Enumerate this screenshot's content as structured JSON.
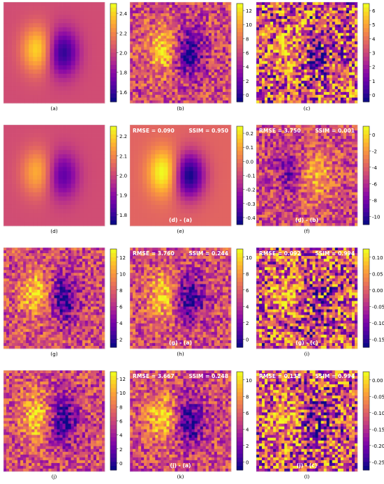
{
  "panels": [
    {
      "id": "a",
      "caption": "(a)",
      "pattern": "smooth",
      "scheme": "dipole",
      "overlay": null,
      "colorbar": {
        "ticks": [
          "2.4",
          "2.2",
          "2.0",
          "1.8",
          "1.6"
        ]
      }
    },
    {
      "id": "b",
      "caption": "(b)",
      "pattern": "noisy_soft",
      "scheme": "dipole",
      "overlay": null,
      "colorbar": {
        "ticks": [
          "12",
          "10",
          "8",
          "6",
          "4",
          "2",
          "0"
        ]
      }
    },
    {
      "id": "c",
      "caption": "(c)",
      "pattern": "noisy_heavy",
      "scheme": "dipole",
      "overlay": null,
      "colorbar": {
        "ticks": [
          "6",
          "5",
          "4",
          "3",
          "2",
          "1",
          "0"
        ]
      }
    },
    {
      "id": "d",
      "caption": "(d)",
      "pattern": "smooth_weak",
      "scheme": "dipole",
      "overlay": null,
      "colorbar": {
        "ticks": [
          "2.2",
          "2.1",
          "2.0",
          "1.9",
          "1.8"
        ]
      }
    },
    {
      "id": "e",
      "caption": "(e)",
      "pattern": "smooth",
      "scheme": "diff_e",
      "overlay": {
        "rmse": "RMSE = 0.090",
        "ssim": "SSIM = 0.950",
        "label": "(d) - (a)"
      },
      "colorbar": {
        "ticks": [
          "0.2",
          "0.1",
          "0.0",
          "-0.1",
          "-0.2",
          "-0.3",
          "-0.4"
        ]
      }
    },
    {
      "id": "f",
      "caption": "(f)",
      "pattern": "noisy_soft",
      "scheme": "reverse",
      "overlay": {
        "rmse": "RMSE = 3.750",
        "ssim": "SSIM = 0.001",
        "label": "(d) - (b)"
      },
      "colorbar": {
        "ticks": [
          "0",
          "-2",
          "-4",
          "-6",
          "-8",
          "-10"
        ]
      }
    },
    {
      "id": "g",
      "caption": "(g)",
      "pattern": "noisy_soft",
      "scheme": "dipole",
      "overlay": null,
      "colorbar": {
        "ticks": [
          "12",
          "10",
          "8",
          "6",
          "4",
          "2"
        ]
      }
    },
    {
      "id": "h",
      "caption": "(h)",
      "pattern": "noisy_soft",
      "scheme": "dipole",
      "overlay": {
        "rmse": "RMSE = 3.760",
        "ssim": "SSIM = 0.244",
        "label": "(g) - (a)"
      },
      "colorbar": {
        "ticks": [
          "10",
          "8",
          "6",
          "4",
          "2",
          "0"
        ]
      }
    },
    {
      "id": "i",
      "caption": "(i)",
      "pattern": "noisy_heavy",
      "scheme": "dipole",
      "overlay": {
        "rmse": "RMSE = 0.092",
        "ssim": "SSIM = 0.994",
        "label": "(g) - (c)"
      },
      "colorbar": {
        "ticks": [
          "0.10",
          "0.05",
          "0.00",
          "-0.05",
          "-0.10",
          "-0.15"
        ]
      }
    },
    {
      "id": "j",
      "caption": "(j)",
      "pattern": "noisy_soft",
      "scheme": "dipole",
      "overlay": null,
      "colorbar": {
        "ticks": [
          "12",
          "10",
          "8",
          "6",
          "4",
          "2",
          "0"
        ]
      }
    },
    {
      "id": "k",
      "caption": "(k)",
      "pattern": "noisy_soft",
      "scheme": "dipole",
      "overlay": {
        "rmse": "RMSE = 3.667",
        "ssim": "SSIM = 0.248",
        "label": "(j) - (a)"
      },
      "colorbar": {
        "ticks": [
          "10",
          "8",
          "6",
          "4",
          "2",
          "0"
        ]
      }
    },
    {
      "id": "l",
      "caption": "(l)",
      "pattern": "noisy_heavy",
      "scheme": "dipole",
      "overlay": {
        "rmse": "RMSE = 0.138",
        "ssim": "SSIM = 0.994",
        "label": "(j) - (c)"
      },
      "colorbar": {
        "ticks": [
          "0.00",
          "-0.05",
          "-0.10",
          "-0.15",
          "-0.20",
          "-0.25"
        ]
      }
    }
  ],
  "colors": {
    "background": "#c84f79",
    "high": "#fcd225",
    "low": "#2e0595",
    "overlay_text": "#ffffff"
  }
}
